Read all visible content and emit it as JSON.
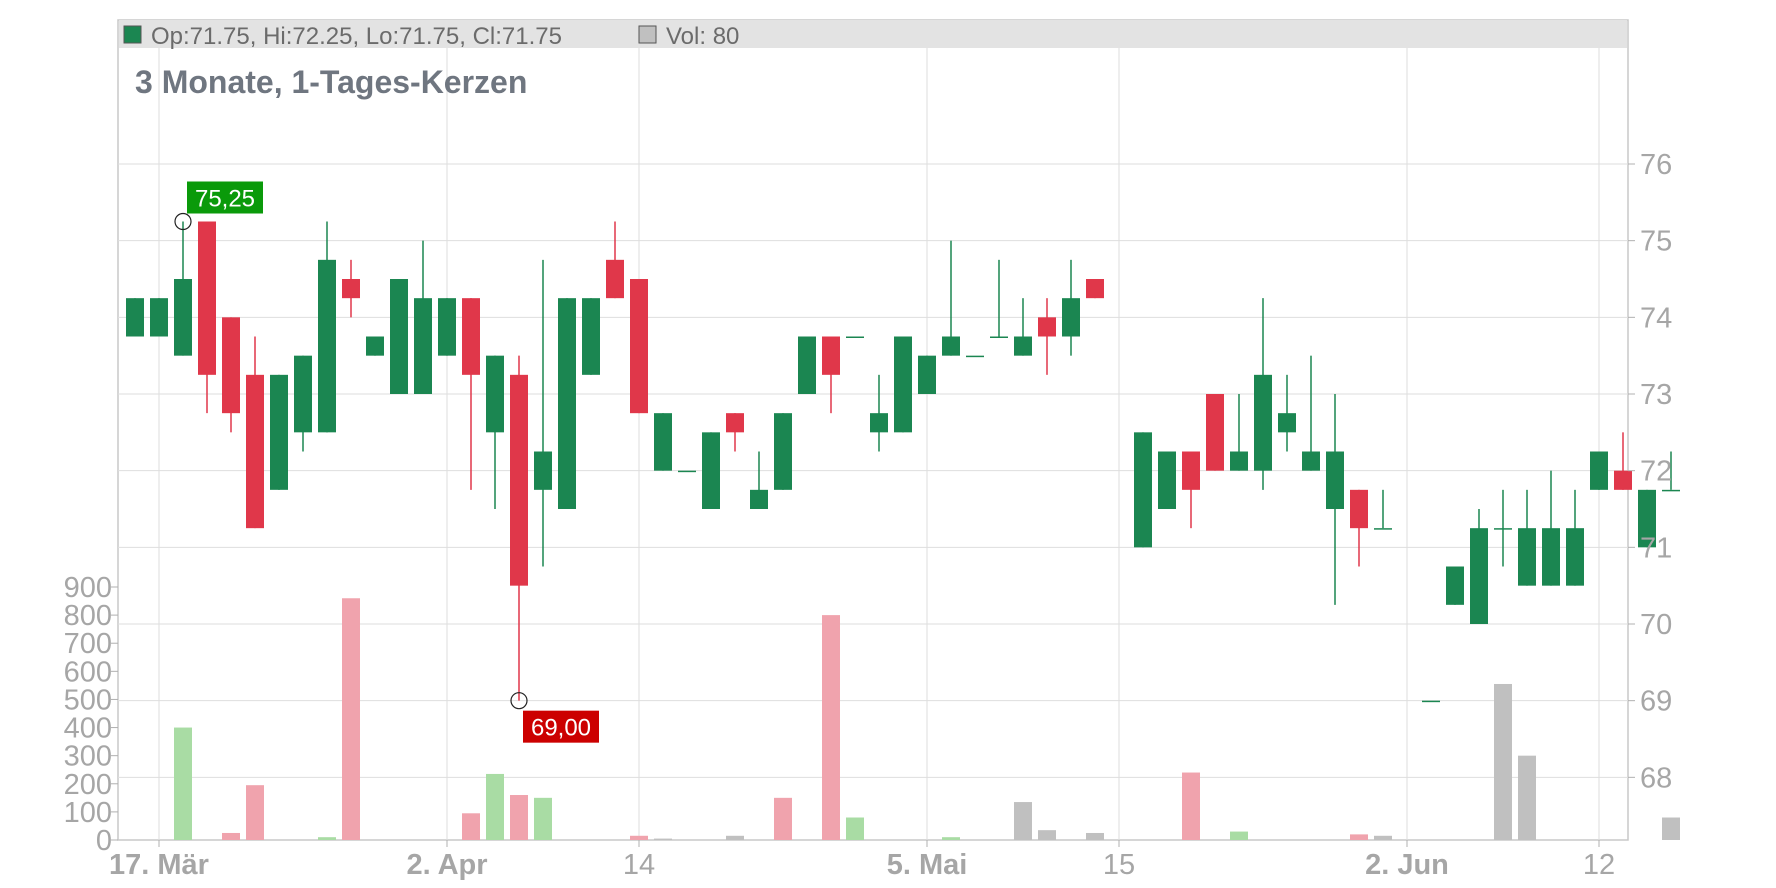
{
  "legend": {
    "ohlc_text": "Op:71.75, Hi:72.25, Lo:71.75, Cl:71.75",
    "vol_text": "Vol: 80",
    "ohlc_swatch_color": "#1b8651",
    "vol_swatch_color": "#c0c0c0"
  },
  "colors": {
    "up": "#1b8651",
    "down": "#e0374a",
    "vol_up": "#a9dca4",
    "vol_down": "#f0a3ad",
    "vol_neutral": "#c0c0c0",
    "high_label_bg": "#0a9a0a",
    "low_label_bg": "#cc0000"
  },
  "chart_data": {
    "type": "candlestick",
    "title": "3 Monate, 1-Tages-Kerzen",
    "price_axis": {
      "ylim": [
        67.6,
        76.6
      ],
      "ticks": [
        "76",
        "75",
        "74",
        "73",
        "72",
        "71",
        "70",
        "69",
        "68"
      ],
      "position": "right"
    },
    "volume_axis": {
      "ylim": [
        0,
        900
      ],
      "ticks": [
        "900",
        "800",
        "700",
        "600",
        "500",
        "400",
        "300",
        "200",
        "100",
        "0"
      ],
      "position": "left"
    },
    "x_ticks": [
      {
        "label": "17. Mär",
        "index": 1.0,
        "bold": true
      },
      {
        "label": "2. Apr",
        "index": 13.0,
        "bold": true
      },
      {
        "label": "14",
        "index": 21.0,
        "bold": false
      },
      {
        "label": "5. Mai",
        "index": 33.0,
        "bold": true
      },
      {
        "label": "15",
        "index": 41.0,
        "bold": false
      },
      {
        "label": "2. Jun",
        "index": 53.0,
        "bold": true
      },
      {
        "label": "12",
        "index": 61.0,
        "bold": false
      }
    ],
    "annotations": {
      "high": {
        "label": "75,25",
        "index": 2,
        "value": 75.25
      },
      "low": {
        "label": "69,00",
        "index": 16,
        "value": 69.0
      }
    },
    "candles": [
      {
        "o": 73.75,
        "h": 74.25,
        "l": 73.75,
        "c": 74.25,
        "v": 0,
        "vc": "none"
      },
      {
        "o": 73.75,
        "h": 74.25,
        "l": 73.75,
        "c": 74.25,
        "v": 0,
        "vc": "none"
      },
      {
        "o": 73.5,
        "h": 75.25,
        "l": 73.5,
        "c": 74.5,
        "v": 400,
        "vc": "up"
      },
      {
        "o": 75.25,
        "h": 75.25,
        "l": 72.75,
        "c": 73.25,
        "v": 0,
        "vc": "none"
      },
      {
        "o": 74.0,
        "h": 74.0,
        "l": 72.5,
        "c": 72.75,
        "v": 25,
        "vc": "down"
      },
      {
        "o": 73.25,
        "h": 73.75,
        "l": 71.25,
        "c": 71.25,
        "v": 195,
        "vc": "down"
      },
      {
        "o": 71.75,
        "h": 73.25,
        "l": 71.75,
        "c": 73.25,
        "v": 0,
        "vc": "none"
      },
      {
        "o": 72.5,
        "h": 73.5,
        "l": 72.25,
        "c": 73.5,
        "v": 0,
        "vc": "none"
      },
      {
        "o": 72.5,
        "h": 75.25,
        "l": 72.5,
        "c": 74.75,
        "v": 10,
        "vc": "up"
      },
      {
        "o": 74.5,
        "h": 74.75,
        "l": 74.0,
        "c": 74.25,
        "v": 860,
        "vc": "down"
      },
      {
        "o": 73.5,
        "h": 73.75,
        "l": 73.5,
        "c": 73.75,
        "v": 0,
        "vc": "none"
      },
      {
        "o": 73.0,
        "h": 74.5,
        "l": 73.0,
        "c": 74.5,
        "v": 0,
        "vc": "none"
      },
      {
        "o": 73.0,
        "h": 75.0,
        "l": 73.0,
        "c": 74.25,
        "v": 0,
        "vc": "none"
      },
      {
        "o": 73.5,
        "h": 74.25,
        "l": 73.5,
        "c": 74.25,
        "v": 0,
        "vc": "none"
      },
      {
        "o": 74.25,
        "h": 74.25,
        "l": 71.75,
        "c": 73.25,
        "v": 95,
        "vc": "down"
      },
      {
        "o": 72.5,
        "h": 73.5,
        "l": 71.5,
        "c": 73.5,
        "v": 235,
        "vc": "up"
      },
      {
        "o": 73.25,
        "h": 73.5,
        "l": 69.0,
        "c": 70.5,
        "v": 160,
        "vc": "down"
      },
      {
        "o": 71.75,
        "h": 74.75,
        "l": 70.75,
        "c": 72.25,
        "v": 150,
        "vc": "up"
      },
      {
        "o": 71.5,
        "h": 74.25,
        "l": 71.5,
        "c": 74.25,
        "v": 0,
        "vc": "none"
      },
      {
        "o": 73.25,
        "h": 74.25,
        "l": 73.25,
        "c": 74.25,
        "v": 0,
        "vc": "none"
      },
      {
        "o": 74.75,
        "h": 75.25,
        "l": 74.25,
        "c": 74.25,
        "v": 0,
        "vc": "none"
      },
      {
        "o": 74.5,
        "h": 74.5,
        "l": 72.75,
        "c": 72.75,
        "v": 15,
        "vc": "down"
      },
      {
        "o": 72.0,
        "h": 72.75,
        "l": 72.0,
        "c": 72.75,
        "v": 5,
        "vc": "neutral"
      },
      {
        "o": 72.0,
        "h": 72.0,
        "l": 72.0,
        "c": 72.0,
        "v": 0,
        "vc": "none"
      },
      {
        "o": 71.5,
        "h": 72.5,
        "l": 71.5,
        "c": 72.5,
        "v": 0,
        "vc": "none"
      },
      {
        "o": 72.75,
        "h": 72.75,
        "l": 72.25,
        "c": 72.5,
        "v": 15,
        "vc": "neutral"
      },
      {
        "o": 71.5,
        "h": 72.25,
        "l": 71.5,
        "c": 71.75,
        "v": 0,
        "vc": "none"
      },
      {
        "o": 71.75,
        "h": 72.75,
        "l": 71.75,
        "c": 72.75,
        "v": 150,
        "vc": "down"
      },
      {
        "o": 73.0,
        "h": 73.75,
        "l": 73.0,
        "c": 73.75,
        "v": 0,
        "vc": "none"
      },
      {
        "o": 73.75,
        "h": 73.75,
        "l": 72.75,
        "c": 73.25,
        "v": 800,
        "vc": "down"
      },
      {
        "o": 73.75,
        "h": 73.75,
        "l": 73.75,
        "c": 73.75,
        "v": 80,
        "vc": "up"
      },
      {
        "o": 72.5,
        "h": 73.25,
        "l": 72.25,
        "c": 72.75,
        "v": 0,
        "vc": "none"
      },
      {
        "o": 72.5,
        "h": 73.75,
        "l": 72.5,
        "c": 73.75,
        "v": 0,
        "vc": "none"
      },
      {
        "o": 73.0,
        "h": 73.5,
        "l": 73.0,
        "c": 73.5,
        "v": 0,
        "vc": "none"
      },
      {
        "o": 73.5,
        "h": 75.0,
        "l": 73.5,
        "c": 73.75,
        "v": 10,
        "vc": "up"
      },
      {
        "o": 73.5,
        "h": 73.5,
        "l": 73.5,
        "c": 73.5,
        "v": 0,
        "vc": "none"
      },
      {
        "o": 73.75,
        "h": 74.75,
        "l": 73.75,
        "c": 73.75,
        "v": 0,
        "vc": "none"
      },
      {
        "o": 73.5,
        "h": 74.25,
        "l": 73.5,
        "c": 73.75,
        "v": 135,
        "vc": "neutral"
      },
      {
        "o": 74.0,
        "h": 74.25,
        "l": 73.25,
        "c": 73.75,
        "v": 35,
        "vc": "neutral"
      },
      {
        "o": 73.75,
        "h": 74.75,
        "l": 73.5,
        "c": 74.25,
        "v": 0,
        "vc": "none"
      },
      {
        "o": 74.5,
        "h": 74.5,
        "l": 74.25,
        "c": 74.25,
        "v": 25,
        "vc": "neutral"
      },
      {
        "o": null,
        "h": null,
        "l": null,
        "c": null,
        "v": 0,
        "vc": "none"
      },
      {
        "o": 71.0,
        "h": 72.5,
        "l": 71.0,
        "c": 72.5,
        "v": 0,
        "vc": "none"
      },
      {
        "o": 71.5,
        "h": 72.25,
        "l": 71.5,
        "c": 72.25,
        "v": 0,
        "vc": "none"
      },
      {
        "o": 72.25,
        "h": 72.25,
        "l": 71.25,
        "c": 71.75,
        "v": 240,
        "vc": "down"
      },
      {
        "o": 73.0,
        "h": 73.0,
        "l": 72.0,
        "c": 72.0,
        "v": 0,
        "vc": "none"
      },
      {
        "o": 72.0,
        "h": 73.0,
        "l": 72.0,
        "c": 72.25,
        "v": 30,
        "vc": "up"
      },
      {
        "o": 72.0,
        "h": 74.25,
        "l": 71.75,
        "c": 73.25,
        "v": 0,
        "vc": "none"
      },
      {
        "o": 72.5,
        "h": 73.25,
        "l": 72.25,
        "c": 72.75,
        "v": 0,
        "vc": "none"
      },
      {
        "o": 72.0,
        "h": 73.5,
        "l": 72.0,
        "c": 72.25,
        "v": 0,
        "vc": "none"
      },
      {
        "o": 71.5,
        "h": 73.0,
        "l": 70.25,
        "c": 72.25,
        "v": 0,
        "vc": "none"
      },
      {
        "o": 71.75,
        "h": 71.75,
        "l": 70.75,
        "c": 71.25,
        "v": 20,
        "vc": "down"
      },
      {
        "o": 71.25,
        "h": 71.75,
        "l": 71.25,
        "c": 71.25,
        "v": 15,
        "vc": "neutral"
      },
      {
        "o": null,
        "h": null,
        "l": null,
        "c": null,
        "v": 0,
        "vc": "none"
      },
      {
        "o": 69.0,
        "h": 69.0,
        "l": 69.0,
        "c": 69.0,
        "v": 0,
        "vc": "none"
      },
      {
        "o": 70.25,
        "h": 70.75,
        "l": 70.25,
        "c": 70.75,
        "v": 0,
        "vc": "none"
      },
      {
        "o": 70.0,
        "h": 71.5,
        "l": 70.0,
        "c": 71.25,
        "v": 0,
        "vc": "none"
      },
      {
        "o": 71.25,
        "h": 71.75,
        "l": 70.75,
        "c": 71.25,
        "v": 555,
        "vc": "neutral"
      },
      {
        "o": 70.5,
        "h": 71.75,
        "l": 70.5,
        "c": 71.25,
        "v": 300,
        "vc": "neutral"
      },
      {
        "o": 70.5,
        "h": 72.0,
        "l": 70.5,
        "c": 71.25,
        "v": 0,
        "vc": "none"
      },
      {
        "o": 70.5,
        "h": 71.75,
        "l": 70.5,
        "c": 71.25,
        "v": 0,
        "vc": "none"
      },
      {
        "o": 71.75,
        "h": 72.25,
        "l": 71.75,
        "c": 72.25,
        "v": 0,
        "vc": "none"
      },
      {
        "o": 72.0,
        "h": 72.5,
        "l": 71.75,
        "c": 71.75,
        "v": 0,
        "vc": "none"
      },
      {
        "o": 71.0,
        "h": 71.75,
        "l": 71.0,
        "c": 71.75,
        "v": 0,
        "vc": "none"
      },
      {
        "o": 71.75,
        "h": 72.25,
        "l": 71.75,
        "c": 71.75,
        "v": 80,
        "vc": "neutral"
      }
    ]
  }
}
